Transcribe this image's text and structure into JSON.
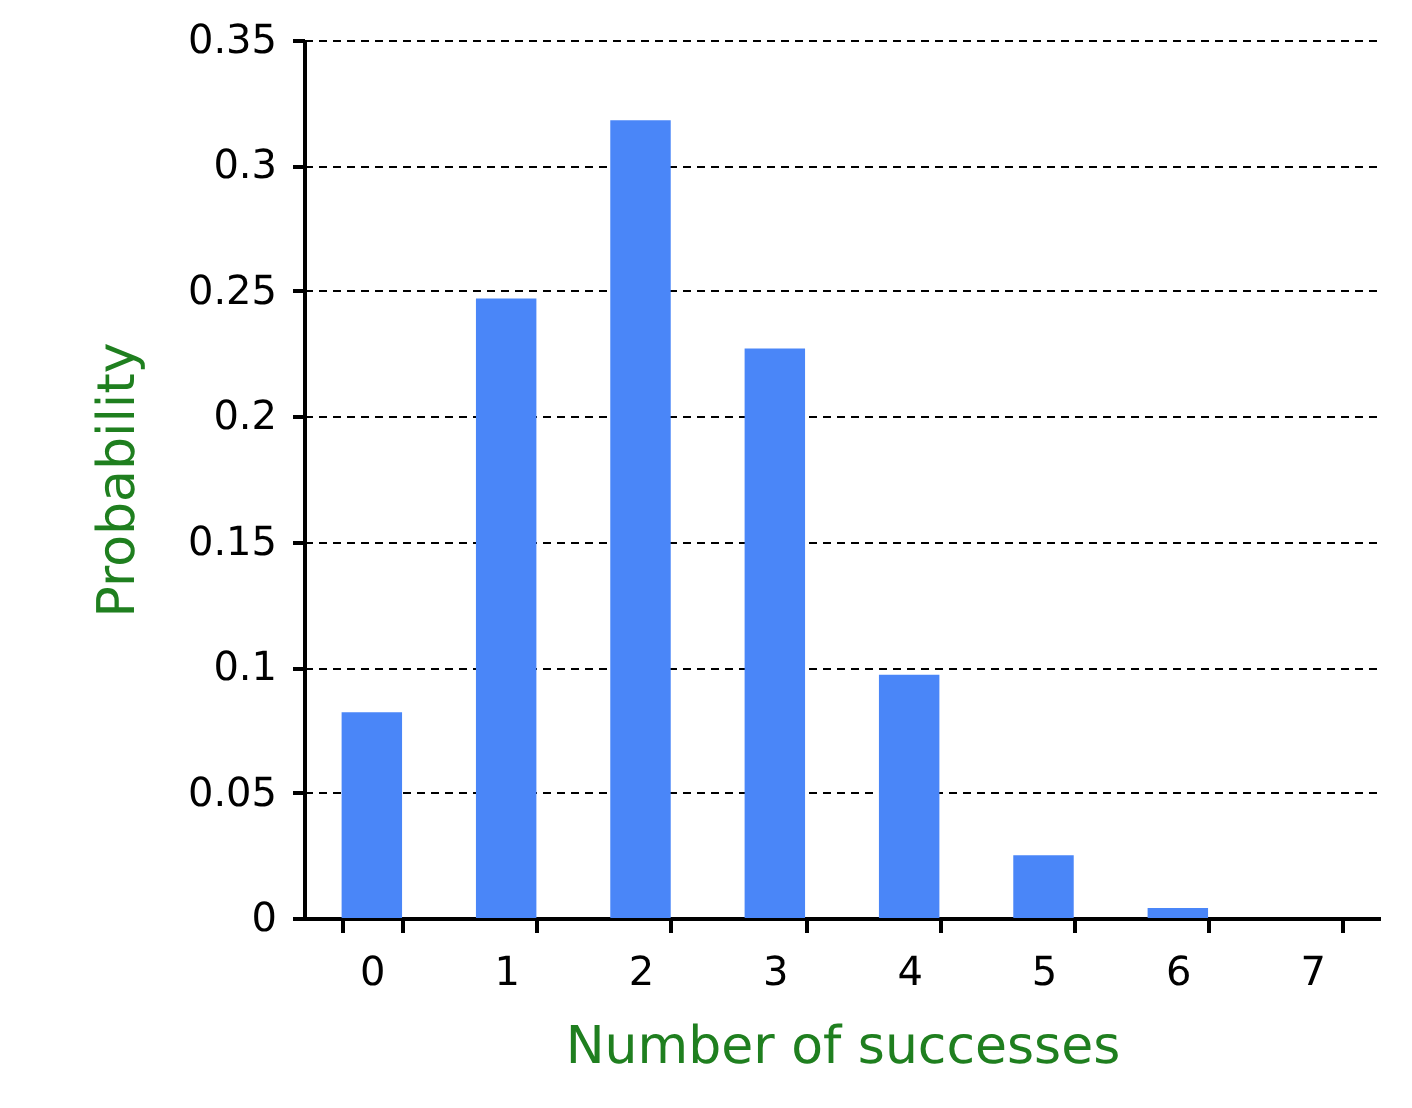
{
  "chart_data": {
    "type": "bar",
    "xlabel": "Number of successes",
    "ylabel": "Probability",
    "categories": [
      "0",
      "1",
      "2",
      "3",
      "4",
      "5",
      "6",
      "7"
    ],
    "values": [
      0.082,
      0.247,
      0.318,
      0.227,
      0.097,
      0.025,
      0.004,
      0
    ],
    "color": "#4a86f8",
    "ylim": [
      0,
      0.35
    ],
    "yticks": [
      0,
      0.05,
      0.1,
      0.15,
      0.2,
      0.25,
      0.3,
      0.35
    ],
    "grid": "y"
  }
}
